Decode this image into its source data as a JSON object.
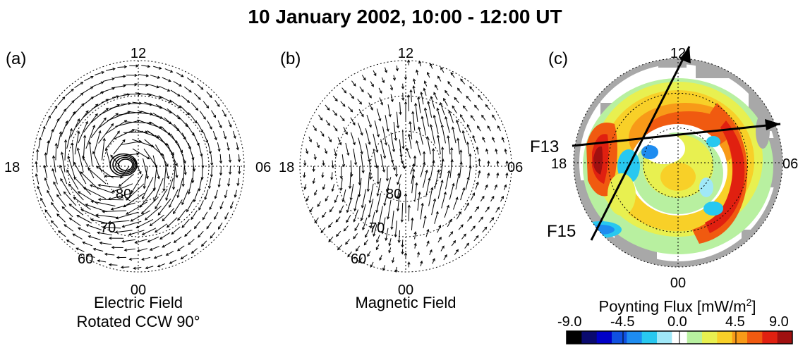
{
  "title": "10 January 2002, 10:00 - 12:00 UT",
  "panels": [
    {
      "label": "(a)",
      "caption_lines": [
        "Electric Field",
        "Rotated CCW 90°"
      ],
      "mlt_labels": {
        "top": "12",
        "left": "18",
        "right": "06",
        "bottom": "00"
      },
      "lat_labels": [
        "80",
        "70",
        "60"
      ]
    },
    {
      "label": "(b)",
      "caption_lines": [
        "Magnetic Field"
      ],
      "mlt_labels": {
        "top": "12",
        "left": "18",
        "right": "06",
        "bottom": "00"
      },
      "lat_labels": [
        "80",
        "70",
        "60"
      ]
    },
    {
      "label": "(c)",
      "caption_lines": [
        "Poynting Flux [mW/m",
        "2",
        "]"
      ],
      "mlt_labels": {
        "top": "12",
        "left": "18",
        "right": "06",
        "bottom": "00"
      },
      "satellites": [
        "F13",
        "F15"
      ]
    }
  ],
  "colorbar": {
    "ticks": [
      "-9.0",
      "-4.5",
      "0.0",
      "4.5",
      "9.0"
    ],
    "range": [
      -9.0,
      9.0
    ],
    "colors": [
      "#000000",
      "#0a0a6e",
      "#0000c8",
      "#1050e0",
      "#1e8cf0",
      "#28c8f0",
      "#a0e8f8",
      "#ffffff",
      "#b8f0a0",
      "#e8f050",
      "#f8d028",
      "#f89a18",
      "#f05a10",
      "#e02010",
      "#a01010"
    ]
  },
  "colors": {
    "gray_region": "#a8a8a8",
    "track": "#000000"
  }
}
